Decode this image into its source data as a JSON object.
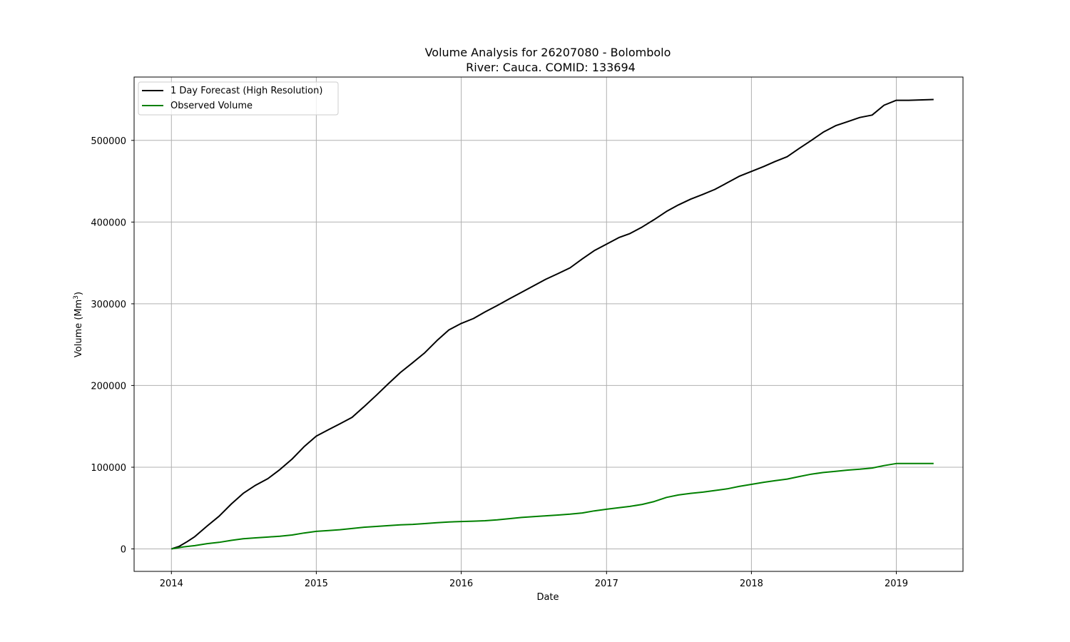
{
  "chart_data": {
    "type": "line",
    "title_line1": "Volume Analysis for 26207080 - Bolombolo",
    "title_line2": "River: Cauca. COMID: 133694",
    "xlabel": "Date",
    "ylabel": "Volume (Mm",
    "ylabel_sup": "3",
    "ylabel_close": ")",
    "xlim": [
      "2013-09-29",
      "2019-06-18"
    ],
    "ylim": [
      -27500,
      577500
    ],
    "x_ticks": [
      "2014",
      "2015",
      "2016",
      "2017",
      "2018",
      "2019"
    ],
    "x_tick_dates": [
      "2014-01-01",
      "2015-01-01",
      "2016-01-01",
      "2017-01-01",
      "2018-01-01",
      "2019-01-01"
    ],
    "y_ticks": [
      "0",
      "100000",
      "200000",
      "300000",
      "400000",
      "500000"
    ],
    "y_tick_values": [
      0,
      100000,
      200000,
      300000,
      400000,
      500000
    ],
    "grid": true,
    "legend_position": "top-left",
    "series": [
      {
        "name": "1 Day Forecast (High Resolution)",
        "color": "#000000",
        "points": [
          [
            "2014-01-01",
            0
          ],
          [
            "2014-01-20",
            3000
          ],
          [
            "2014-02-10",
            9000
          ],
          [
            "2014-03-01",
            15000
          ],
          [
            "2014-04-01",
            28000
          ],
          [
            "2014-05-01",
            40000
          ],
          [
            "2014-06-01",
            55000
          ],
          [
            "2014-07-01",
            68000
          ],
          [
            "2014-08-01",
            78000
          ],
          [
            "2014-09-01",
            86000
          ],
          [
            "2014-10-01",
            97000
          ],
          [
            "2014-11-01",
            110000
          ],
          [
            "2014-12-01",
            125000
          ],
          [
            "2015-01-01",
            138000
          ],
          [
            "2015-02-01",
            146000
          ],
          [
            "2015-03-01",
            153000
          ],
          [
            "2015-04-01",
            161000
          ],
          [
            "2015-05-01",
            174000
          ],
          [
            "2015-06-01",
            188000
          ],
          [
            "2015-07-01",
            202000
          ],
          [
            "2015-08-01",
            216000
          ],
          [
            "2015-09-01",
            228000
          ],
          [
            "2015-10-01",
            240000
          ],
          [
            "2015-11-01",
            255000
          ],
          [
            "2015-12-01",
            268000
          ],
          [
            "2016-01-01",
            276000
          ],
          [
            "2016-02-01",
            282000
          ],
          [
            "2016-03-01",
            290000
          ],
          [
            "2016-04-01",
            298000
          ],
          [
            "2016-05-01",
            306000
          ],
          [
            "2016-06-01",
            314000
          ],
          [
            "2016-07-01",
            322000
          ],
          [
            "2016-08-01",
            330000
          ],
          [
            "2016-09-01",
            337000
          ],
          [
            "2016-10-01",
            344000
          ],
          [
            "2016-11-01",
            355000
          ],
          [
            "2016-12-01",
            365000
          ],
          [
            "2017-01-01",
            373000
          ],
          [
            "2017-02-01",
            381000
          ],
          [
            "2017-03-01",
            386000
          ],
          [
            "2017-04-01",
            394000
          ],
          [
            "2017-05-01",
            403000
          ],
          [
            "2017-06-01",
            413000
          ],
          [
            "2017-07-01",
            421000
          ],
          [
            "2017-08-01",
            428000
          ],
          [
            "2017-09-01",
            434000
          ],
          [
            "2017-10-01",
            440000
          ],
          [
            "2017-11-01",
            448000
          ],
          [
            "2017-12-01",
            456000
          ],
          [
            "2018-01-01",
            462000
          ],
          [
            "2018-02-01",
            468000
          ],
          [
            "2018-03-01",
            474000
          ],
          [
            "2018-04-01",
            480000
          ],
          [
            "2018-05-01",
            490000
          ],
          [
            "2018-06-01",
            500000
          ],
          [
            "2018-07-01",
            510000
          ],
          [
            "2018-08-01",
            518000
          ],
          [
            "2018-09-01",
            523000
          ],
          [
            "2018-10-01",
            528000
          ],
          [
            "2018-11-01",
            531000
          ],
          [
            "2018-12-01",
            543000
          ],
          [
            "2019-01-01",
            549000
          ],
          [
            "2019-02-01",
            549000
          ],
          [
            "2019-03-01",
            549500
          ],
          [
            "2019-04-05",
            550000
          ]
        ]
      },
      {
        "name": "Observed Volume",
        "color": "#008000",
        "points": [
          [
            "2014-01-01",
            0
          ],
          [
            "2014-02-01",
            2500
          ],
          [
            "2014-03-01",
            4000
          ],
          [
            "2014-04-01",
            6500
          ],
          [
            "2014-05-01",
            8000
          ],
          [
            "2014-06-01",
            10500
          ],
          [
            "2014-07-01",
            12500
          ],
          [
            "2014-08-01",
            13500
          ],
          [
            "2014-09-01",
            14500
          ],
          [
            "2014-10-01",
            15500
          ],
          [
            "2014-11-01",
            17000
          ],
          [
            "2014-12-01",
            19500
          ],
          [
            "2015-01-01",
            21500
          ],
          [
            "2015-02-01",
            22500
          ],
          [
            "2015-03-01",
            23500
          ],
          [
            "2015-04-01",
            25000
          ],
          [
            "2015-05-01",
            26500
          ],
          [
            "2015-06-01",
            27500
          ],
          [
            "2015-07-01",
            28500
          ],
          [
            "2015-08-01",
            29500
          ],
          [
            "2015-09-01",
            30000
          ],
          [
            "2015-10-01",
            31000
          ],
          [
            "2015-11-01",
            32000
          ],
          [
            "2015-12-01",
            33000
          ],
          [
            "2016-01-01",
            33500
          ],
          [
            "2016-02-01",
            34000
          ],
          [
            "2016-03-01",
            34500
          ],
          [
            "2016-04-01",
            35500
          ],
          [
            "2016-05-01",
            37000
          ],
          [
            "2016-06-01",
            38500
          ],
          [
            "2016-07-01",
            39500
          ],
          [
            "2016-08-01",
            40500
          ],
          [
            "2016-09-01",
            41500
          ],
          [
            "2016-10-01",
            42500
          ],
          [
            "2016-11-01",
            44000
          ],
          [
            "2016-12-01",
            46500
          ],
          [
            "2017-01-01",
            48500
          ],
          [
            "2017-02-01",
            50500
          ],
          [
            "2017-03-01",
            52000
          ],
          [
            "2017-04-01",
            54500
          ],
          [
            "2017-05-01",
            58000
          ],
          [
            "2017-06-01",
            63000
          ],
          [
            "2017-07-01",
            66000
          ],
          [
            "2017-08-01",
            68000
          ],
          [
            "2017-09-01",
            69500
          ],
          [
            "2017-10-01",
            71500
          ],
          [
            "2017-11-01",
            73500
          ],
          [
            "2017-12-01",
            76500
          ],
          [
            "2018-01-01",
            79000
          ],
          [
            "2018-02-01",
            81500
          ],
          [
            "2018-03-01",
            83500
          ],
          [
            "2018-04-01",
            85500
          ],
          [
            "2018-05-01",
            88500
          ],
          [
            "2018-06-01",
            91500
          ],
          [
            "2018-07-01",
            93500
          ],
          [
            "2018-08-01",
            95000
          ],
          [
            "2018-09-01",
            96500
          ],
          [
            "2018-10-01",
            97500
          ],
          [
            "2018-11-01",
            99000
          ],
          [
            "2018-12-01",
            102000
          ],
          [
            "2019-01-01",
            104500
          ],
          [
            "2019-02-01",
            104500
          ],
          [
            "2019-03-01",
            104500
          ],
          [
            "2019-04-05",
            104500
          ]
        ]
      }
    ]
  }
}
